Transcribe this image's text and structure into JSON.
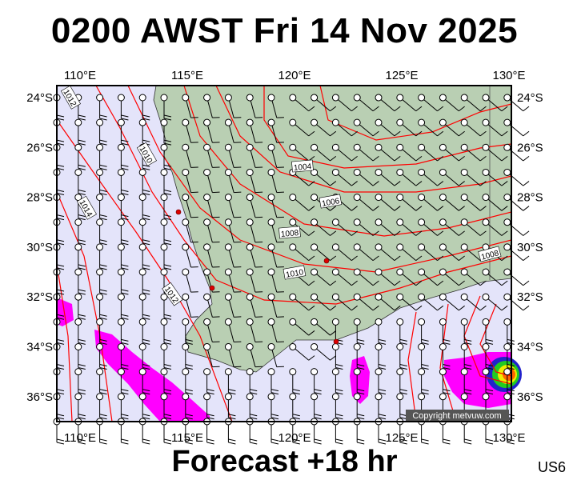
{
  "title": "0200 AWST Fri 14 Nov 2025",
  "footer": "Forecast +18 hr",
  "model_code": "US6",
  "copyright": "Copyright metvuw.com",
  "map": {
    "lon_range": [
      109,
      130
    ],
    "lat_range": [
      -37,
      -23.5
    ],
    "lon_ticks": [
      "110°E",
      "115°E",
      "120°E",
      "125°E",
      "130°E"
    ],
    "lat_ticks": [
      "24°S",
      "26°S",
      "28°S",
      "30°S",
      "32°S",
      "34°S",
      "36°S"
    ],
    "isobar_labels": [
      "1012",
      "1010",
      "1014",
      "1012",
      "1004",
      "1006",
      "1008",
      "1010",
      "1008"
    ],
    "colors": {
      "ocean": "#e4e4fa",
      "land": "#b9cfb3",
      "isobar": "#ff0000",
      "precip": "#ff00ff",
      "barb": "#000000"
    }
  }
}
